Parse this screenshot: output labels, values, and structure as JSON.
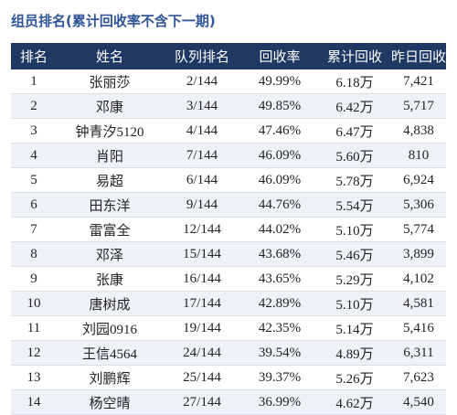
{
  "header": {
    "title": "组员排名(累计回收率不含下一期)"
  },
  "table": {
    "columns": [
      "排名",
      "姓名",
      "队列排名",
      "回收率",
      "累计回收",
      "昨日回收"
    ],
    "rows": [
      [
        "1",
        "张丽莎",
        "2/144",
        "49.99%",
        "6.18万",
        "7,421"
      ],
      [
        "2",
        "邓康",
        "3/144",
        "49.85%",
        "6.42万",
        "5,717"
      ],
      [
        "3",
        "钟青汐5120",
        "4/144",
        "47.46%",
        "6.47万",
        "4,838"
      ],
      [
        "4",
        "肖阳",
        "7/144",
        "46.09%",
        "5.60万",
        "810"
      ],
      [
        "5",
        "易超",
        "6/144",
        "46.09%",
        "5.78万",
        "6,924"
      ],
      [
        "6",
        "田东洋",
        "9/144",
        "44.76%",
        "5.54万",
        "5,306"
      ],
      [
        "7",
        "雷富全",
        "12/144",
        "44.02%",
        "5.10万",
        "5,774"
      ],
      [
        "8",
        "邓泽",
        "15/144",
        "43.68%",
        "5.46万",
        "3,899"
      ],
      [
        "9",
        "张康",
        "16/144",
        "43.65%",
        "5.29万",
        "4,102"
      ],
      [
        "10",
        "唐树成",
        "17/144",
        "42.89%",
        "5.10万",
        "4,581"
      ],
      [
        "11",
        "刘园0916",
        "19/144",
        "42.35%",
        "5.14万",
        "5,416"
      ],
      [
        "12",
        "王信4564",
        "24/144",
        "39.54%",
        "4.89万",
        "6,311"
      ],
      [
        "13",
        "刘鹏辉",
        "25/144",
        "39.37%",
        "5.26万",
        "7,623"
      ],
      [
        "14",
        "杨空晴",
        "27/144",
        "36.99%",
        "4.62万",
        "4,540"
      ]
    ]
  }
}
